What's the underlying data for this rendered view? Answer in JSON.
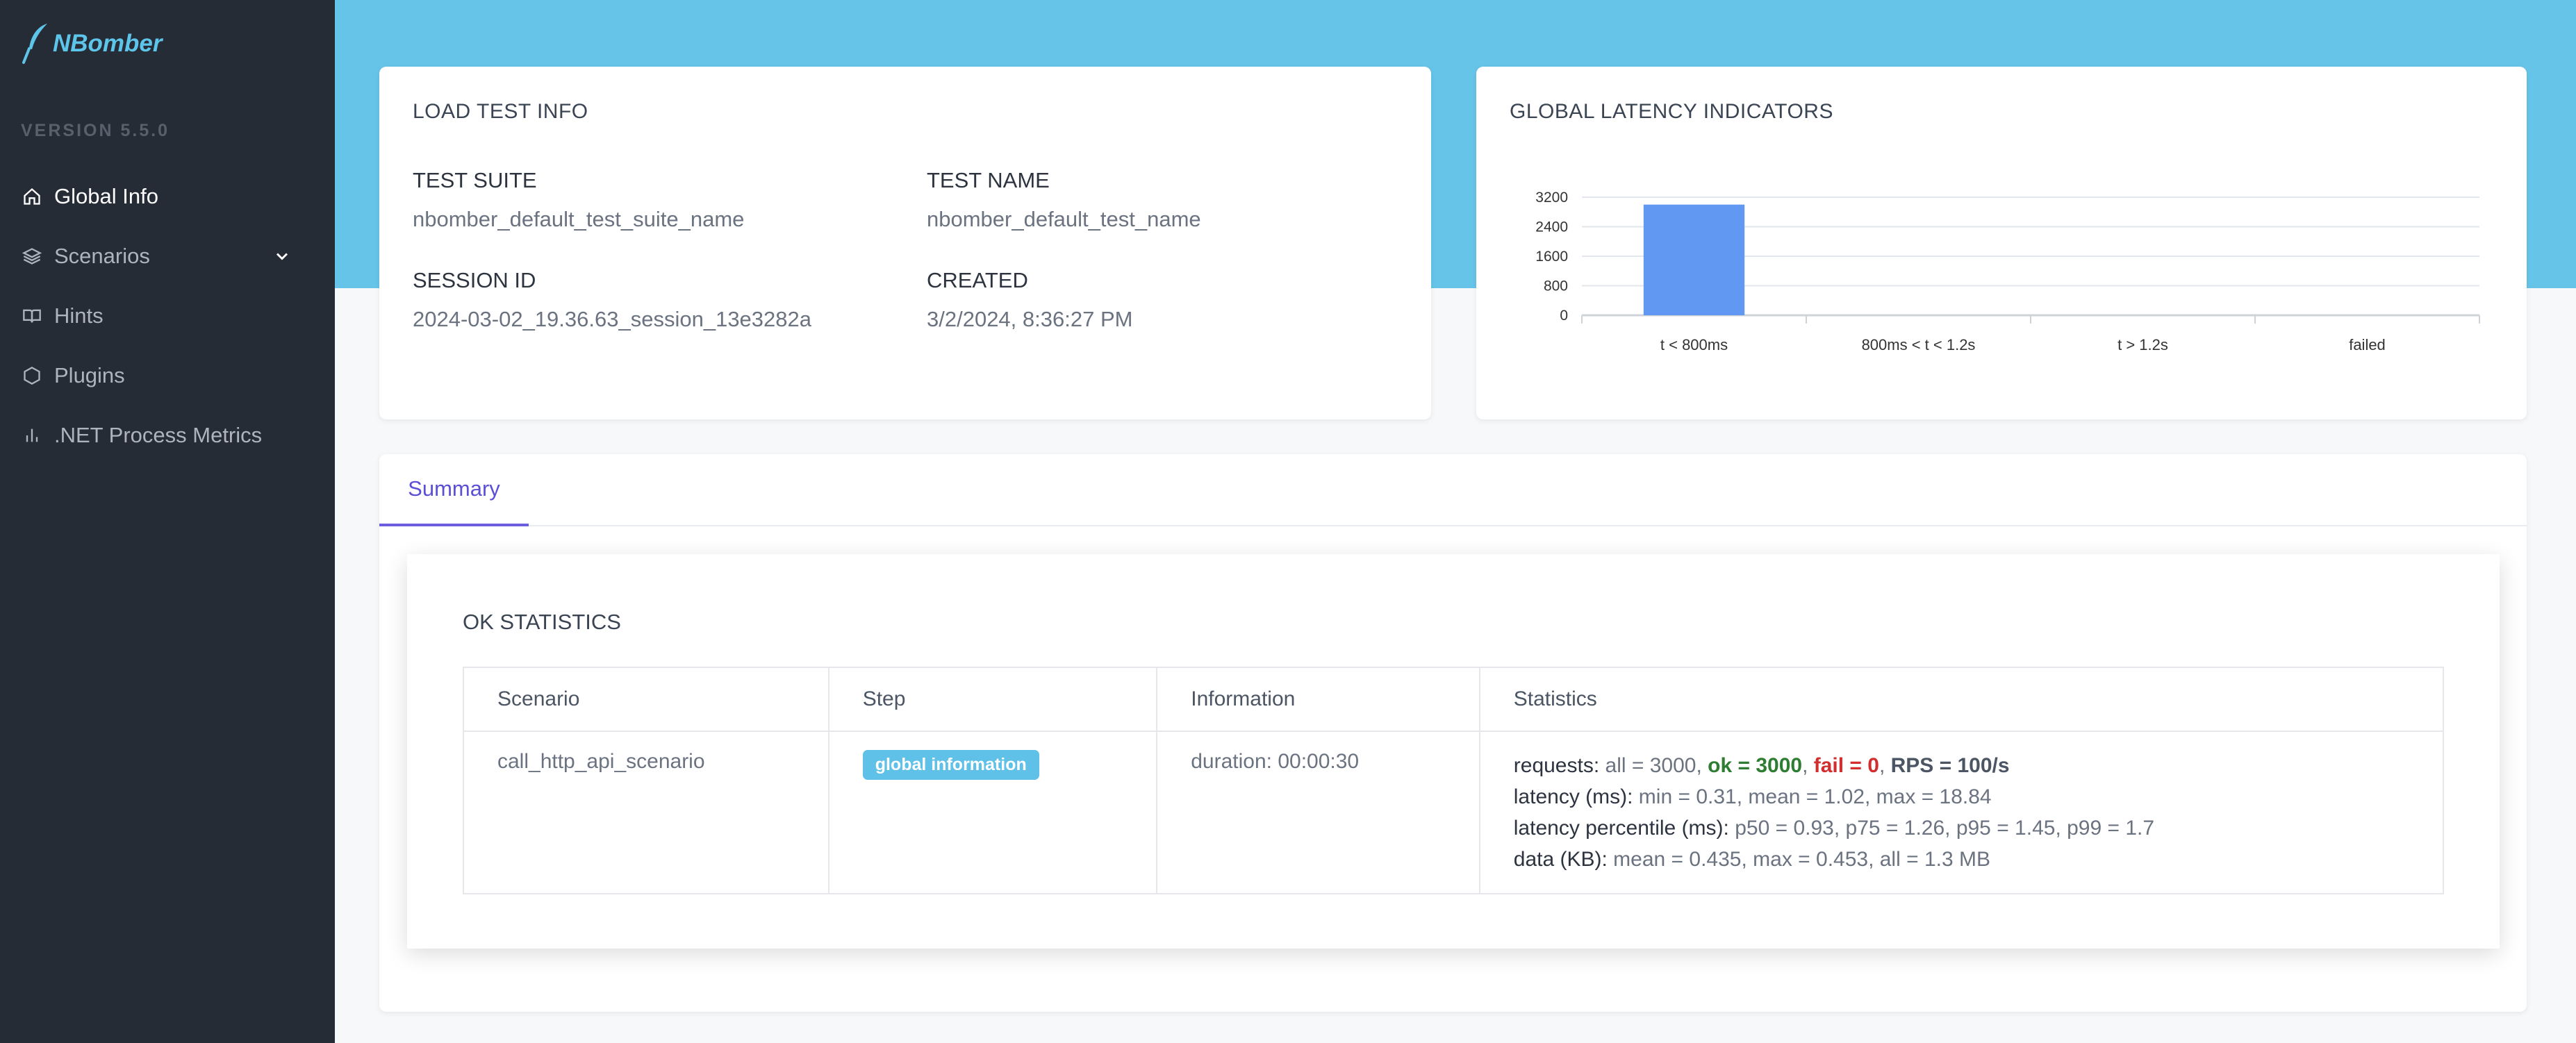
{
  "app": {
    "logo_text": "NBomber",
    "version": "VERSION 5.5.0"
  },
  "sidebar": {
    "items": [
      {
        "label": "Global Info",
        "icon": "home-icon"
      },
      {
        "label": "Scenarios",
        "icon": "layers-icon"
      },
      {
        "label": "Hints",
        "icon": "book-icon"
      },
      {
        "label": "Plugins",
        "icon": "hexagon-icon"
      },
      {
        "label": ".NET Process Metrics",
        "icon": "bar-chart-icon"
      }
    ]
  },
  "load_test_info": {
    "title": "LOAD TEST INFO",
    "test_suite_label": "TEST SUITE",
    "test_suite": "nbomber_default_test_suite_name",
    "test_name_label": "TEST NAME",
    "test_name": "nbomber_default_test_name",
    "session_id_label": "SESSION ID",
    "session_id": "2024-03-02_19.36.63_session_13e3282a",
    "created_label": "CREATED",
    "created": "3/2/2024, 8:36:27 PM"
  },
  "latency": {
    "title": "GLOBAL LATENCY INDICATORS"
  },
  "chart_data": {
    "type": "bar",
    "categories": [
      "t < 800ms",
      "800ms < t < 1.2s",
      "t > 1.2s",
      "failed"
    ],
    "values": [
      3000,
      0,
      0,
      0
    ],
    "yticks": [
      0,
      800,
      1600,
      2400,
      3200
    ],
    "ylim": [
      0,
      3200
    ],
    "bar_color": "#6199f2",
    "grid": true
  },
  "summary": {
    "tab_label": "Summary",
    "section_title": "OK STATISTICS",
    "columns": [
      "Scenario",
      "Step",
      "Information",
      "Statistics"
    ],
    "row": {
      "scenario": "call_http_api_scenario",
      "step": "global information",
      "information": "duration: 00:00:30",
      "requests_label": "requests:",
      "requests_all": " all = 3000, ",
      "requests_ok": "ok = 3000",
      "sep1": ", ",
      "requests_fail": "fail = 0",
      "sep2": ", ",
      "requests_rps": "RPS = 100/s",
      "latency_label": "latency (ms):",
      "latency_value": " min = 0.31, mean = 1.02, max = 18.84",
      "percentile_label": "latency percentile (ms):",
      "percentile_value": " p50 = 0.93, p75 = 1.26, p95 = 1.45, p99 = 1.7",
      "data_label": "data (KB):",
      "data_value": " mean = 0.435, max = 0.453, all = 1.3 MB"
    }
  },
  "colors": {
    "sidebar_bg": "#262c36",
    "banner": "#67c4e9",
    "accent": "#5b4fd6",
    "ok": "#2e7d32",
    "fail": "#d12f2f",
    "badge": "#5fc0e8"
  }
}
